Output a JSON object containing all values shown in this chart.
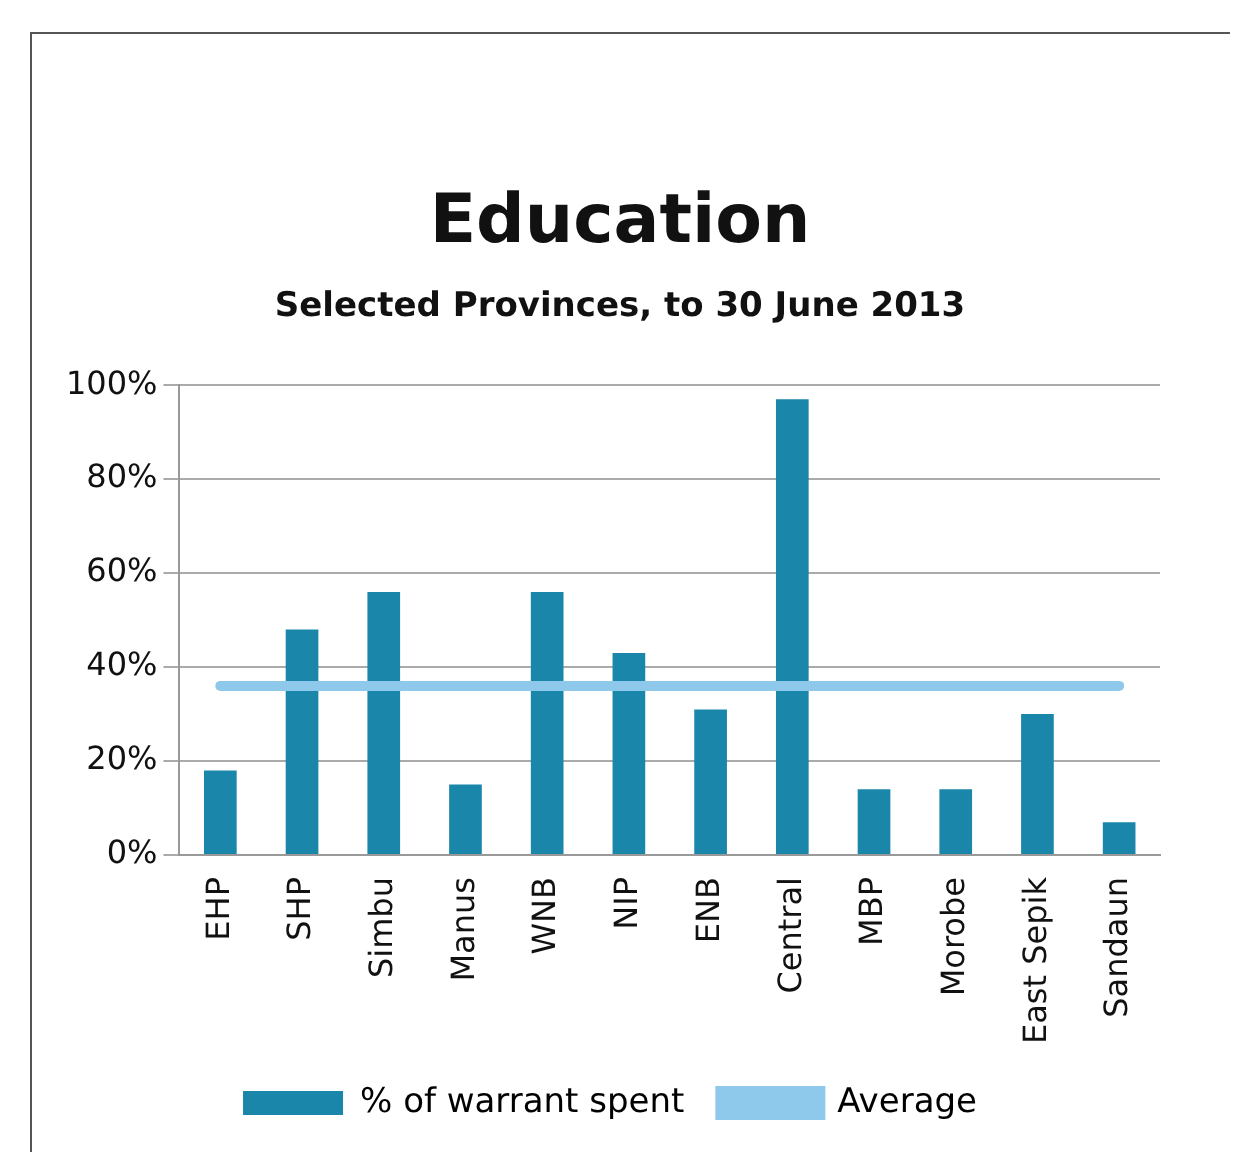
{
  "chart_data": {
    "type": "bar",
    "title": "Education",
    "subtitle": "Selected Provinces, to 30 June 2013",
    "categories": [
      "EHP",
      "SHP",
      "Simbu",
      "Manus",
      "WNB",
      "NIP",
      "ENB",
      "Central",
      "MBP",
      "Morobe",
      "East Sepik",
      "Sandaun"
    ],
    "series": [
      {
        "name": "% of warrant spent",
        "color": "#1a87aa",
        "values": [
          18,
          48,
          56,
          15,
          56,
          43,
          31,
          97,
          14,
          14,
          30,
          7
        ]
      },
      {
        "name": "Average",
        "type": "line",
        "color": "#8ec8ea",
        "values": [
          36,
          36,
          36,
          36,
          36,
          36,
          36,
          36,
          36,
          36,
          36,
          36
        ]
      }
    ],
    "ylim": [
      0,
      100
    ],
    "yticks": [
      {
        "value": 0,
        "label": "0%"
      },
      {
        "value": 20,
        "label": "20%"
      },
      {
        "value": 40,
        "label": "40%"
      },
      {
        "value": 60,
        "label": "60%"
      },
      {
        "value": 80,
        "label": "80%"
      },
      {
        "value": 100,
        "label": "100%"
      }
    ],
    "grid": "y",
    "legend": "bottom",
    "marker": "none"
  }
}
